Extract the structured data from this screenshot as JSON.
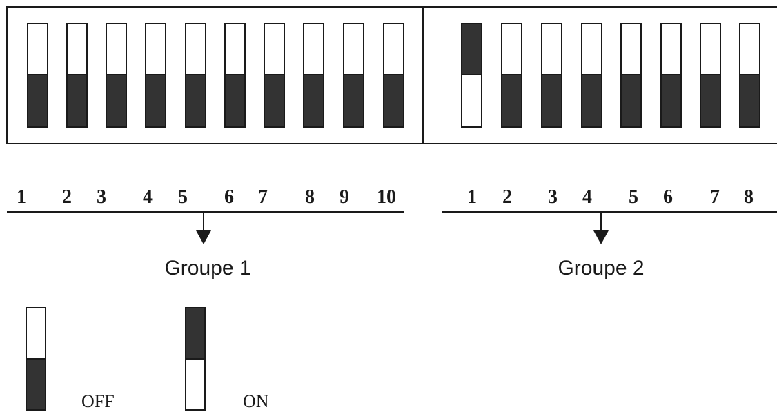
{
  "colors": {
    "dark": "#333333",
    "light": "#ffffff",
    "stroke": "#1a1a1a"
  },
  "groups": [
    {
      "label": "Groupe 1",
      "switches": [
        {
          "num": "1",
          "state": "OFF"
        },
        {
          "num": "2",
          "state": "OFF"
        },
        {
          "num": "3",
          "state": "OFF"
        },
        {
          "num": "4",
          "state": "OFF"
        },
        {
          "num": "5",
          "state": "OFF"
        },
        {
          "num": "6",
          "state": "OFF"
        },
        {
          "num": "7",
          "state": "OFF"
        },
        {
          "num": "8",
          "state": "OFF"
        },
        {
          "num": "9",
          "state": "OFF"
        },
        {
          "num": "10",
          "state": "OFF"
        }
      ]
    },
    {
      "label": "Groupe 2",
      "switches": [
        {
          "num": "1",
          "state": "ON"
        },
        {
          "num": "2",
          "state": "OFF"
        },
        {
          "num": "3",
          "state": "OFF"
        },
        {
          "num": "4",
          "state": "OFF"
        },
        {
          "num": "5",
          "state": "OFF"
        },
        {
          "num": "6",
          "state": "OFF"
        },
        {
          "num": "7",
          "state": "OFF"
        },
        {
          "num": "8",
          "state": "OFF"
        }
      ]
    }
  ],
  "legend": {
    "off_label": "OFF",
    "on_label": "ON"
  }
}
